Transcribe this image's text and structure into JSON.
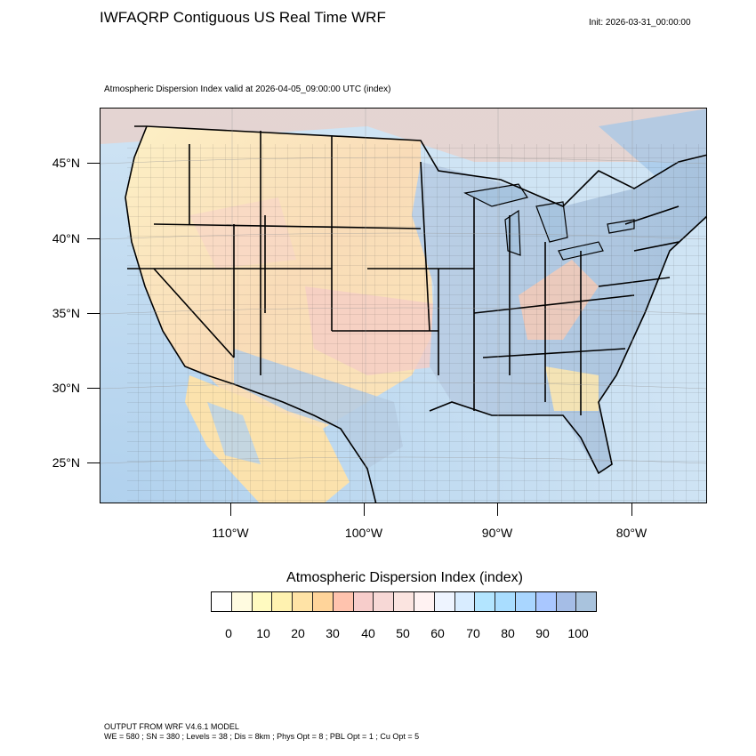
{
  "title": "IWFAQRP Contiguous US Real Time WRF",
  "init": "Init: 2026-03-31_00:00:00",
  "subtitle": "Atmospheric Dispersion Index valid at 2026-04-05_09:00:00 UTC   (index)",
  "lat_labels": [
    "45°N",
    "40°N",
    "35°N",
    "30°N",
    "25°N"
  ],
  "lon_labels": [
    "110°W",
    "100°W",
    "90°W",
    "80°W"
  ],
  "colorbar": {
    "title": "Atmospheric Dispersion Index  (index)",
    "labels": [
      "0",
      "10",
      "20",
      "30",
      "40",
      "50",
      "60",
      "70",
      "80",
      "90",
      "100"
    ],
    "colors": [
      "#ffffff",
      "#fffbe0",
      "#fffac0",
      "#fff2b0",
      "#ffe3a6",
      "#ffd49a",
      "#ffc3ae",
      "#f7cdcb",
      "#f7d8d6",
      "#fbe4e0",
      "#fff2f2",
      "#eef4ff",
      "#d8ecff",
      "#b3e5ff",
      "#a9ddff",
      "#a9d6ff",
      "#a9c7ff",
      "#a5bde6",
      "#a9c3dd"
    ]
  },
  "footer": {
    "line1": "OUTPUT FROM WRF V4.6.1 MODEL",
    "line2": "WE = 580 ; SN = 380 ; Levels = 38 ; Dis = 8km ; Phys Opt = 8 ; PBL Opt = 1 ; Cu Opt = 5"
  },
  "colors": {
    "low": "#fff2c0",
    "mid": "#f8cfc7",
    "high": "#a9c3dd",
    "ocean": "#a9c8e8"
  }
}
